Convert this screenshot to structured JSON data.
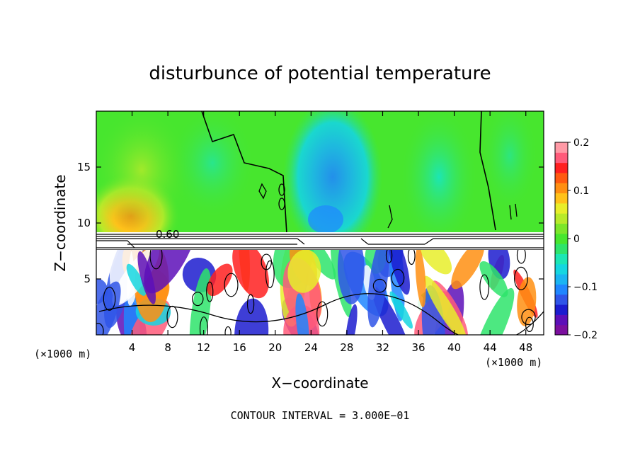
{
  "chart_data": {
    "type": "heatmap",
    "title": "disturbunce of potential temperature",
    "xlabel": "X−coordinate",
    "ylabel": "Z−coordinate",
    "x_unit_left": "(×1000 m)",
    "x_unit_right": "(×1000 m)",
    "xlim": [
      0,
      50
    ],
    "ylim": [
      0,
      20
    ],
    "x_ticks": [
      4,
      8,
      12,
      16,
      20,
      24,
      28,
      32,
      36,
      40,
      44,
      48
    ],
    "y_ticks": [
      5,
      10,
      15
    ],
    "contour_label": "0.60",
    "contour_note": "CONTOUR INTERVAL = 3.000E−01",
    "colorbar": {
      "min": -0.2,
      "max": 0.2,
      "ticks": [
        {
          "value": 0.2,
          "label": "0.2"
        },
        {
          "value": 0.1,
          "label": "0.1"
        },
        {
          "value": 0,
          "label": "0"
        },
        {
          "value": -0.1,
          "label": "−0.1"
        },
        {
          "value": -0.2,
          "label": "−0.2"
        }
      ],
      "colors": [
        "#7b0f9e",
        "#5d0fb8",
        "#1c1ccf",
        "#2f55e8",
        "#1f86ff",
        "#1ab4f2",
        "#15d6e0",
        "#1ce6b4",
        "#2ee46b",
        "#47e62e",
        "#7ce62a",
        "#b8ea2a",
        "#e8ee2a",
        "#ffc21a",
        "#ff8f12",
        "#ff5a10",
        "#ff2020",
        "#ff5b7a",
        "#ff9aa6"
      ]
    }
  }
}
